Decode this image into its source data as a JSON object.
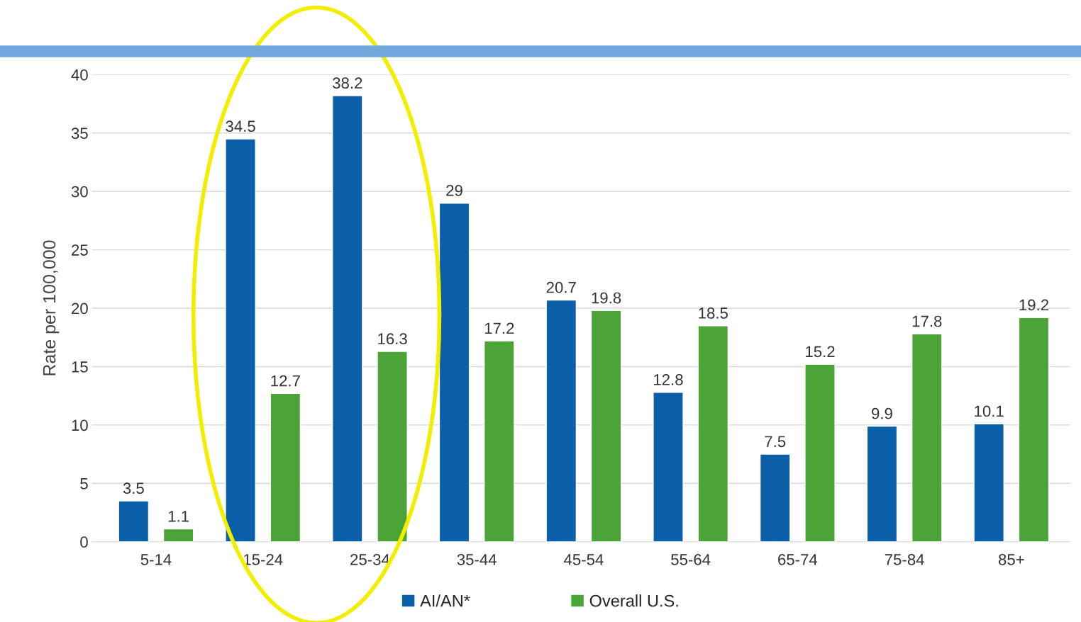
{
  "chart_data": {
    "type": "bar",
    "ylabel": "Rate per 100,000",
    "categories": [
      "5-14",
      "15-24",
      "25-34",
      "35-44",
      "45-54",
      "55-64",
      "65-74",
      "75-84",
      "85+"
    ],
    "series": [
      {
        "name": "AI/AN*",
        "color": "#0b5fa8",
        "values": [
          3.5,
          34.5,
          38.2,
          29,
          20.7,
          12.8,
          7.5,
          9.9,
          10.1
        ]
      },
      {
        "name": "Overall U.S.",
        "color": "#4ca338",
        "values": [
          1.1,
          12.7,
          16.3,
          17.2,
          19.8,
          18.5,
          15.2,
          17.8,
          19.2
        ]
      }
    ],
    "ylim": [
      0,
      40
    ],
    "yticks": [
      0,
      5,
      10,
      15,
      20,
      25,
      30,
      35,
      40
    ],
    "grid": "y",
    "legend": "bottom",
    "data_labels": true
  }
}
